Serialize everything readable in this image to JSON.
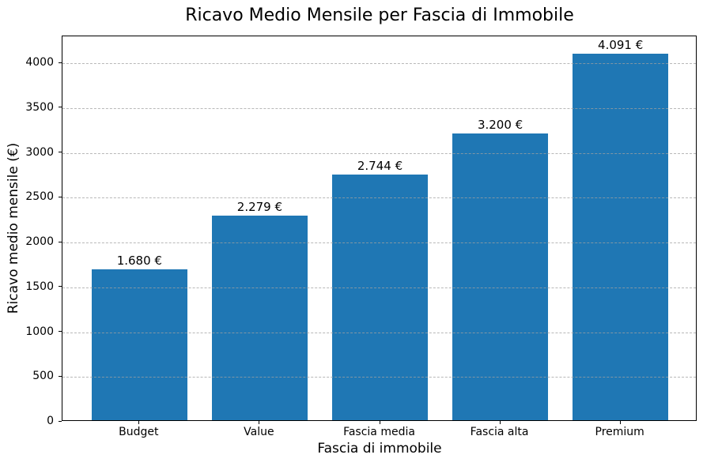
{
  "chart_data": {
    "type": "bar",
    "title": "Ricavo Medio Mensile per Fascia di Immobile",
    "xlabel": "Fascia di immobile",
    "ylabel": "Ricavo medio mensile (€)",
    "categories": [
      "Budget",
      "Value",
      "Fascia media",
      "Fascia alta",
      "Premium"
    ],
    "values": [
      1680,
      2279,
      2744,
      3200,
      4091
    ],
    "value_labels": [
      "1.680 €",
      "2.279 €",
      "2.744 €",
      "3.200 €",
      "4.091 €"
    ],
    "yticks": [
      0,
      500,
      1000,
      1500,
      2000,
      2500,
      3000,
      3500,
      4000
    ],
    "ylim": [
      0,
      4300
    ],
    "bar_color": "#1f77b4",
    "grid": true,
    "grid_style": "dashed",
    "grid_color": "#b0b0b0",
    "legend": null
  }
}
